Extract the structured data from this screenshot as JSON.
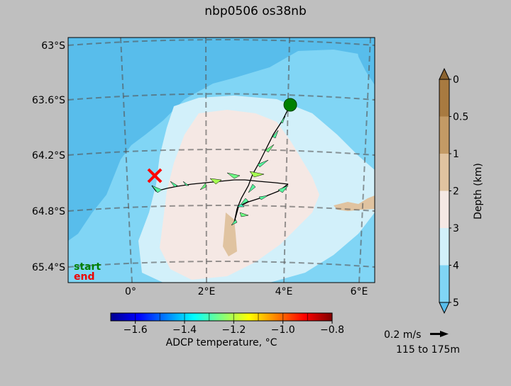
{
  "chart_data": {
    "type": "map",
    "title": "nbp0506 os38nb",
    "map": {
      "lat_ticks": [
        "63°S",
        "63.6°S",
        "64.2°S",
        "64.8°S",
        "65.4°S"
      ],
      "lon_ticks": [
        "0°",
        "2°E",
        "4°E",
        "6°E"
      ],
      "legend": [
        "start",
        "end"
      ],
      "colors": {
        "start": "#008000",
        "end": "#ff0000",
        "land": "#e0c3a0",
        "plateau": "#f5e8e4"
      }
    },
    "colorbar_temperature": {
      "label": "ADCP temperature, °C",
      "ticks": [
        "−1.6",
        "−1.4",
        "−1.2",
        "−1.0",
        "−0.8"
      ],
      "range": [
        -1.7,
        -0.8
      ]
    },
    "colorbar_depth": {
      "label": "Depth (km)",
      "ticks": [
        "0",
        "0.5",
        "1",
        "2",
        "3",
        "4",
        "5"
      ],
      "colors": [
        "#a87a40",
        "#c39a65",
        "#e0c3a0",
        "#f5e8e4",
        "#d2f0fa",
        "#80d5f5",
        "#58bdeb"
      ]
    },
    "scale": {
      "speed": "0.2 m/s",
      "depth_range": "115 to 175m"
    }
  }
}
